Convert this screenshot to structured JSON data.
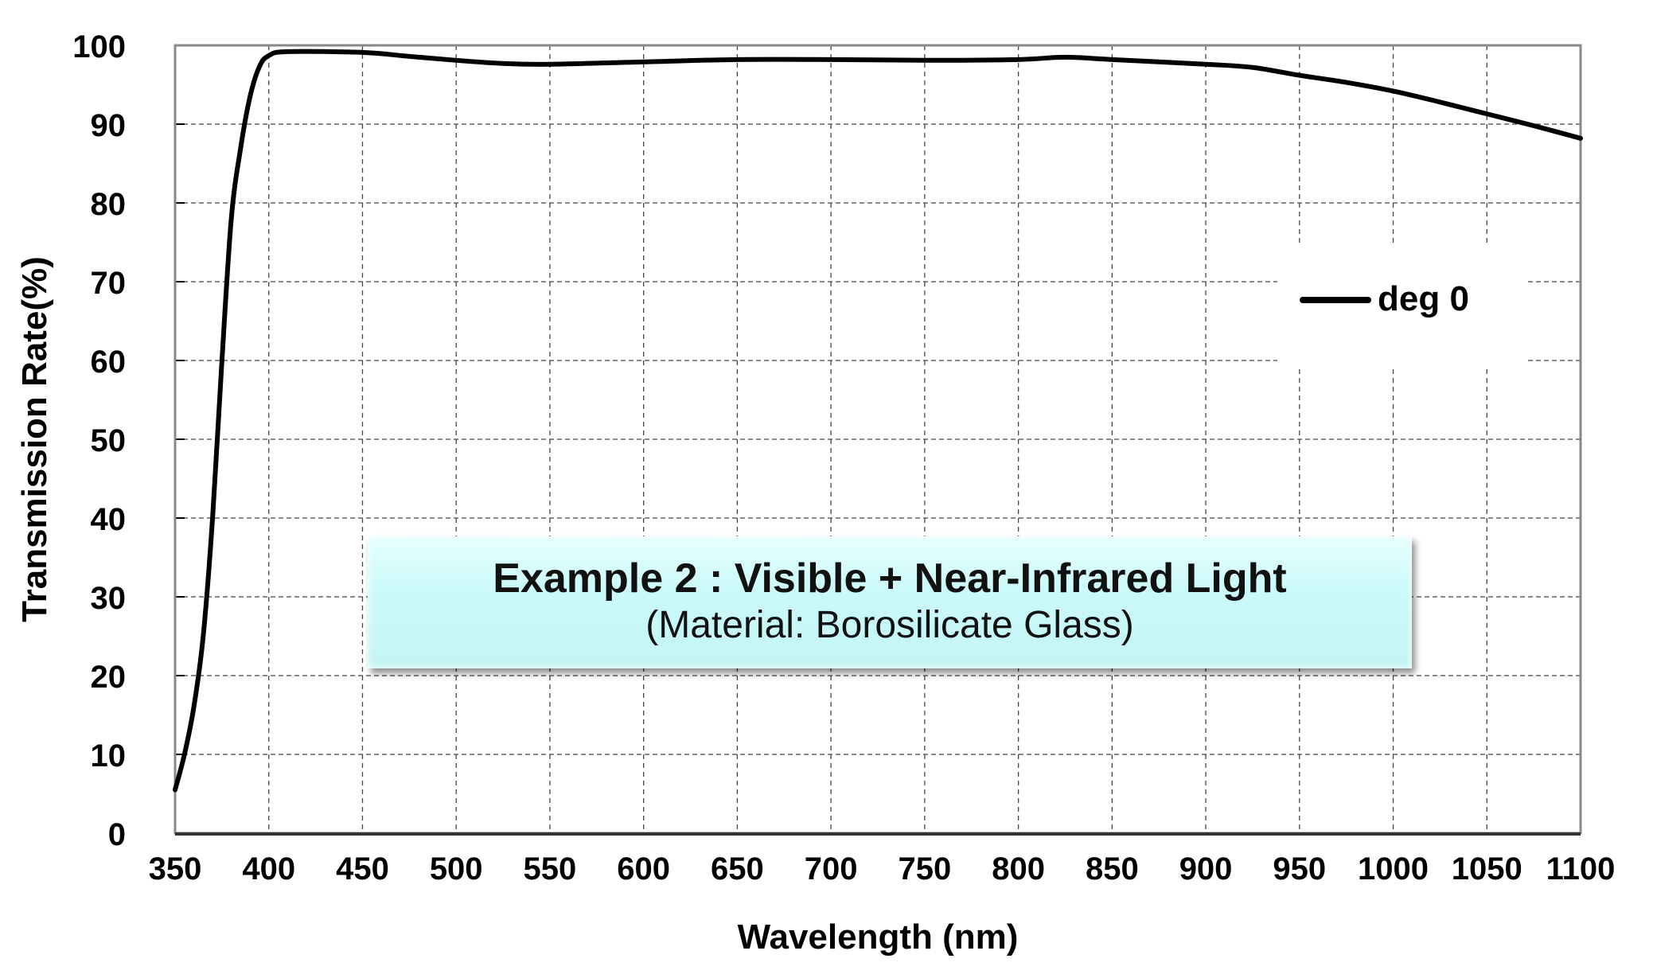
{
  "chart_data": {
    "type": "line",
    "xlabel": "Wavelength (nm)",
    "ylabel": "Transmission Rate(%)",
    "xlim": [
      350,
      1100
    ],
    "ylim": [
      0,
      100
    ],
    "xticks": [
      350,
      400,
      450,
      500,
      550,
      600,
      650,
      700,
      750,
      800,
      850,
      900,
      950,
      1000,
      1050,
      1100
    ],
    "yticks": [
      0,
      10,
      20,
      30,
      40,
      50,
      60,
      70,
      80,
      90,
      100
    ],
    "grid": true,
    "legend_position": "right",
    "series": [
      {
        "name": "deg 0",
        "color": "#000000",
        "x": [
          350,
          355,
          360,
          365,
          370,
          375,
          380,
          385,
          390,
          395,
          400,
          410,
          450,
          475,
          500,
          525,
          550,
          600,
          650,
          700,
          750,
          800,
          825,
          850,
          900,
          925,
          950,
          975,
          1000,
          1025,
          1050,
          1075,
          1100
        ],
        "y": [
          5.5,
          10,
          16,
          25,
          40,
          60,
          78,
          87,
          93.5,
          97.3,
          98.7,
          99.2,
          99.1,
          98.6,
          98.1,
          97.7,
          97.6,
          97.9,
          98.2,
          98.2,
          98.1,
          98.2,
          98.5,
          98.2,
          97.6,
          97.2,
          96.2,
          95.3,
          94.2,
          92.8,
          91.3,
          89.8,
          88.2
        ]
      }
    ],
    "annotation": {
      "title": "Example 2 : Visible + Near-Infrared Light",
      "subtitle": "(Material: Borosilicate Glass)"
    }
  }
}
